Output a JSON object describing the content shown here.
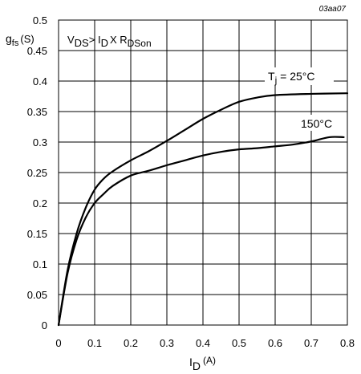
{
  "chart_data": {
    "type": "line",
    "figure_ref": "03aa07",
    "x_axis": {
      "label_main": "I",
      "label_sub": "D",
      "label_unit": "(A)",
      "range": [
        0,
        0.8
      ],
      "ticks": [
        "0",
        "0.1",
        "0.2",
        "0.3",
        "0.4",
        "0.5",
        "0.6",
        "0.7",
        "0.8"
      ]
    },
    "y_axis": {
      "label_main": "g",
      "label_sub": "fs",
      "label_unit": "(S)",
      "range": [
        0,
        0.5
      ],
      "ticks": [
        "0",
        "0.05",
        "0.1",
        "0.15",
        "0.2",
        "0.25",
        "0.3",
        "0.35",
        "0.4",
        "0.45",
        "0.5"
      ]
    },
    "grid": true,
    "condition": {
      "v": "V",
      "v_sub": "DS",
      "relation": "> I",
      "i_sub": "D",
      "times": "X R",
      "r_sub": "DSon"
    },
    "series": [
      {
        "name": "T_j = 25 °C",
        "label_main": "T",
        "label_sub": "j",
        "label_rest": " = 25",
        "label_unit": "°C",
        "x": [
          0,
          0.025,
          0.05,
          0.075,
          0.1,
          0.125,
          0.15,
          0.2,
          0.25,
          0.3,
          0.35,
          0.4,
          0.45,
          0.5,
          0.55,
          0.6,
          0.7,
          0.8
        ],
        "y": [
          0,
          0.09,
          0.15,
          0.192,
          0.222,
          0.24,
          0.252,
          0.27,
          0.285,
          0.302,
          0.32,
          0.338,
          0.353,
          0.366,
          0.373,
          0.377,
          0.379,
          0.38
        ]
      },
      {
        "name": "150 °C",
        "label_rest": "150",
        "label_unit": "°C",
        "x": [
          0,
          0.025,
          0.05,
          0.075,
          0.1,
          0.125,
          0.15,
          0.2,
          0.25,
          0.3,
          0.35,
          0.4,
          0.45,
          0.5,
          0.55,
          0.6,
          0.65,
          0.7,
          0.75,
          0.79
        ],
        "y": [
          0,
          0.085,
          0.14,
          0.176,
          0.2,
          0.215,
          0.228,
          0.245,
          0.253,
          0.262,
          0.27,
          0.278,
          0.284,
          0.288,
          0.29,
          0.293,
          0.296,
          0.301,
          0.308,
          0.308
        ]
      }
    ]
  }
}
